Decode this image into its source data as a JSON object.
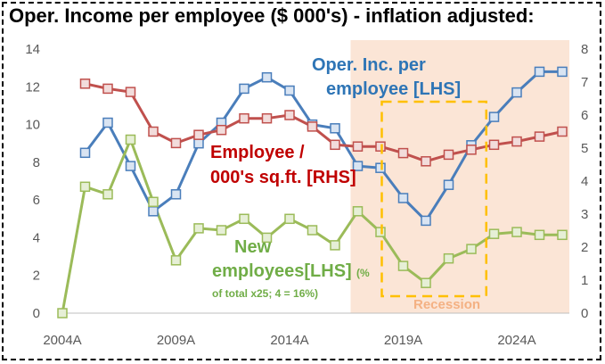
{
  "chart_data": {
    "type": "line",
    "title": "Oper. Income per employee ($ 000's) - inflation adjusted:",
    "x": [
      2004,
      2005,
      2006,
      2007,
      2008,
      2009,
      2010,
      2011,
      2012,
      2013,
      2014,
      2015,
      2016,
      2017,
      2018,
      2019,
      2020,
      2021,
      2022,
      2023,
      2024,
      2025,
      2026
    ],
    "x_tick_labels": [
      "2004A",
      "2009A",
      "2014A",
      "2019A",
      "2024A"
    ],
    "x_tick_years": [
      2004,
      2009,
      2014,
      2019,
      2024
    ],
    "y_left": {
      "ticks": [
        "0",
        "2",
        "4",
        "6",
        "8",
        "10",
        "12",
        "14"
      ],
      "ylim": [
        0,
        14
      ]
    },
    "y_right": {
      "ticks": [
        "0",
        "1",
        "2",
        "3",
        "4",
        "5",
        "6",
        "7",
        "8"
      ],
      "ylim": [
        0,
        8
      ]
    },
    "series": [
      {
        "name": "Oper. Inc. per employee [LHS]",
        "axis": "left",
        "color": "#4A7EBB",
        "x": [
          2005,
          2006,
          2007,
          2008,
          2009,
          2010,
          2011,
          2012,
          2013,
          2014,
          2015,
          2016,
          2017,
          2018,
          2019,
          2020,
          2021,
          2022,
          2023,
          2024,
          2025,
          2026
        ],
        "values": [
          8.5,
          10.1,
          7.8,
          5.4,
          6.3,
          9.0,
          10.1,
          11.9,
          12.5,
          11.8,
          10.0,
          9.8,
          7.8,
          7.7,
          6.1,
          4.9,
          6.8,
          8.9,
          10.4,
          11.7,
          12.8,
          12.8
        ]
      },
      {
        "name": "Employee / 000's sq.ft. [RHS]",
        "axis": "right",
        "color": "#C0504D",
        "x": [
          2005,
          2006,
          2007,
          2008,
          2009,
          2010,
          2011,
          2012,
          2013,
          2014,
          2015,
          2016,
          2017,
          2018,
          2019,
          2020,
          2021,
          2022,
          2023,
          2024,
          2025,
          2026
        ],
        "values": [
          6.95,
          6.8,
          6.7,
          5.5,
          5.15,
          5.4,
          5.55,
          5.9,
          5.9,
          6.0,
          5.65,
          5.1,
          5.05,
          5.05,
          4.85,
          4.6,
          4.8,
          4.95,
          5.1,
          5.2,
          5.35,
          5.5
        ]
      },
      {
        "name": "New employees[LHS]",
        "axis": "left",
        "color": "#9BBB59",
        "x": [
          2004,
          2005,
          2006,
          2007,
          2008,
          2009,
          2010,
          2011,
          2012,
          2013,
          2014,
          2015,
          2016,
          2017,
          2018,
          2019,
          2020,
          2021,
          2022,
          2023,
          2024,
          2025,
          2026
        ],
        "values": [
          0.0,
          6.7,
          6.3,
          9.2,
          5.9,
          2.8,
          4.5,
          4.4,
          5.0,
          4.0,
          5.0,
          4.4,
          3.6,
          5.4,
          4.3,
          2.5,
          1.6,
          2.9,
          3.4,
          4.2,
          4.3,
          4.15,
          4.15
        ]
      }
    ],
    "annotations": {
      "oper_inc_line1": "Oper. Inc. per",
      "oper_inc_line2": "employee [LHS]",
      "employee_line1": "Employee /",
      "employee_line2": "000's sq.ft. [RHS]",
      "new_emp_line1": "New",
      "new_emp_line2": "employees[LHS]",
      "new_emp_pct": "(%",
      "new_emp_note": "of total x25; 4 = 16%)",
      "recession_label": "Recession"
    },
    "shaded_region": {
      "label": "",
      "x_start": 2017,
      "x_end": 2026.5,
      "color": "#FBE5D6"
    },
    "recession_box": {
      "x_start": 2019,
      "x_end": 2022.5,
      "color": "#FFC000"
    },
    "grid": false,
    "legend": "none"
  }
}
